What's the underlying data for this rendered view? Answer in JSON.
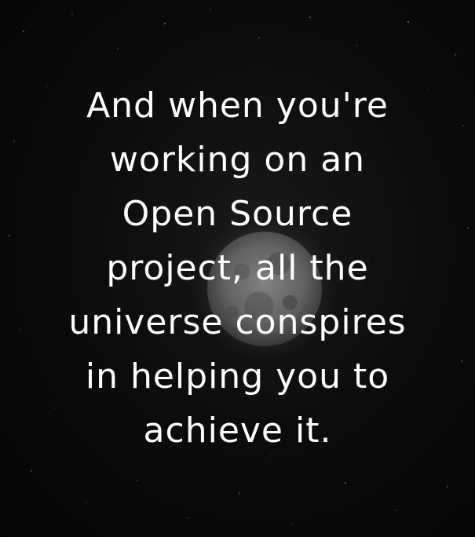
{
  "quote": {
    "lines": [
      "And when you're",
      "working on an",
      "Open Source",
      "project, all the",
      "universe conspires",
      "in helping you to",
      "achieve it."
    ]
  },
  "colors": {
    "background": "#060606",
    "text": "#ffffff",
    "moon": "#7a7a7a"
  }
}
